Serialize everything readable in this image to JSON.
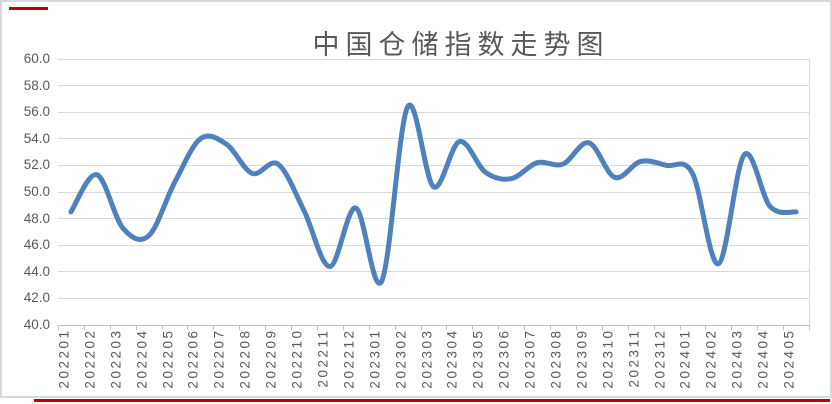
{
  "title": "中国仓储指数走势图",
  "chart_data": {
    "type": "line",
    "title": "中国仓储指数走势图",
    "x": [
      "202201",
      "202202",
      "202203",
      "202204",
      "202205",
      "202206",
      "202207",
      "202208",
      "202209",
      "202210",
      "202211",
      "202212",
      "202301",
      "202302",
      "202303",
      "202304",
      "202305",
      "202306",
      "202307",
      "202308",
      "202309",
      "202310",
      "202311",
      "202312",
      "202401",
      "202402",
      "202403",
      "202404",
      "202405"
    ],
    "series": [
      {
        "name": "中国仓储指数",
        "values": [
          48.5,
          51.3,
          47.3,
          46.7,
          50.7,
          54.0,
          53.6,
          51.4,
          52.1,
          48.6,
          44.4,
          48.8,
          43.3,
          56.4,
          50.4,
          53.8,
          51.5,
          51.0,
          52.2,
          52.1,
          53.7,
          51.1,
          52.3,
          52.0,
          51.4,
          44.6,
          52.8,
          48.9,
          48.5
        ]
      }
    ],
    "xlabel": "",
    "ylabel": "",
    "ylim": [
      40.0,
      60.0
    ],
    "ytick_step": 2.0,
    "yticks": [
      "60.0",
      "58.0",
      "56.0",
      "54.0",
      "52.0",
      "50.0",
      "48.0",
      "46.0",
      "44.0",
      "42.0",
      "40.0"
    ],
    "grid": true,
    "legend_position": "none",
    "smooth_line": true,
    "x_labels_rotated": true
  },
  "colors": {
    "line": "#4F81BD",
    "gridline": "#d9d9d9",
    "axis": "#c2c2c2",
    "label_text": "#595959",
    "title_text": "#595959",
    "border": "#d9d9d9",
    "annotation_red": "#C00000",
    "background": "#ffffff"
  },
  "annotations": {
    "top_left_red_line": "partial red highlight line, top-left corner",
    "bottom_red_line": "red highlight line along bottom edge"
  }
}
